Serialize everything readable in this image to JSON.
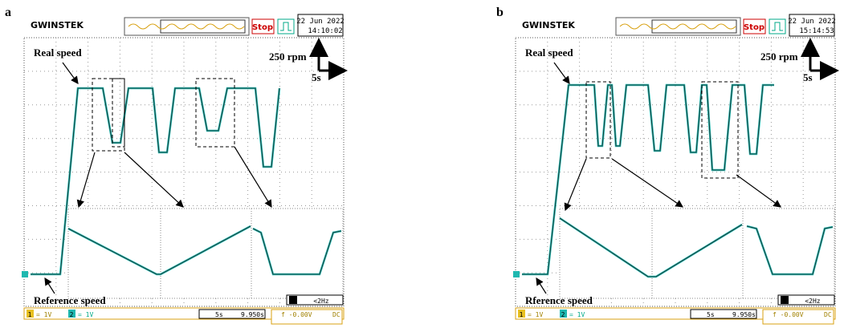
{
  "panels": [
    {
      "label": "a",
      "brand": "GWINSTEK",
      "stop": "Stop",
      "date": "22 Jun 2022",
      "time": "14:10:02",
      "y_scale": "250 rpm",
      "x_scale": "5s",
      "real": "Real speed",
      "reference": "Reference speed",
      "ch1": "1",
      "ch1_scale": "= 1V",
      "ch2": "2",
      "ch2_scale": "= 1V",
      "timebase": "5s",
      "position": "9.950s",
      "trigger": "f -0.00V",
      "coupling": "DC",
      "filter": "<2Hz"
    },
    {
      "label": "b",
      "brand": "GWINSTEK",
      "stop": "Stop",
      "date": "22 Jun 2022",
      "time": "15:14:53",
      "y_scale": "250 rpm",
      "x_scale": "5s",
      "real": "Real speed",
      "reference": "Rference speed",
      "ch1": "1",
      "ch1_scale": "= 1V",
      "ch2": "2",
      "ch2_scale": "= 1V",
      "timebase": "5s",
      "position": "9.950s",
      "trigger": "f -0.00V",
      "coupling": "DC",
      "filter": "<2Hz"
    }
  ]
}
